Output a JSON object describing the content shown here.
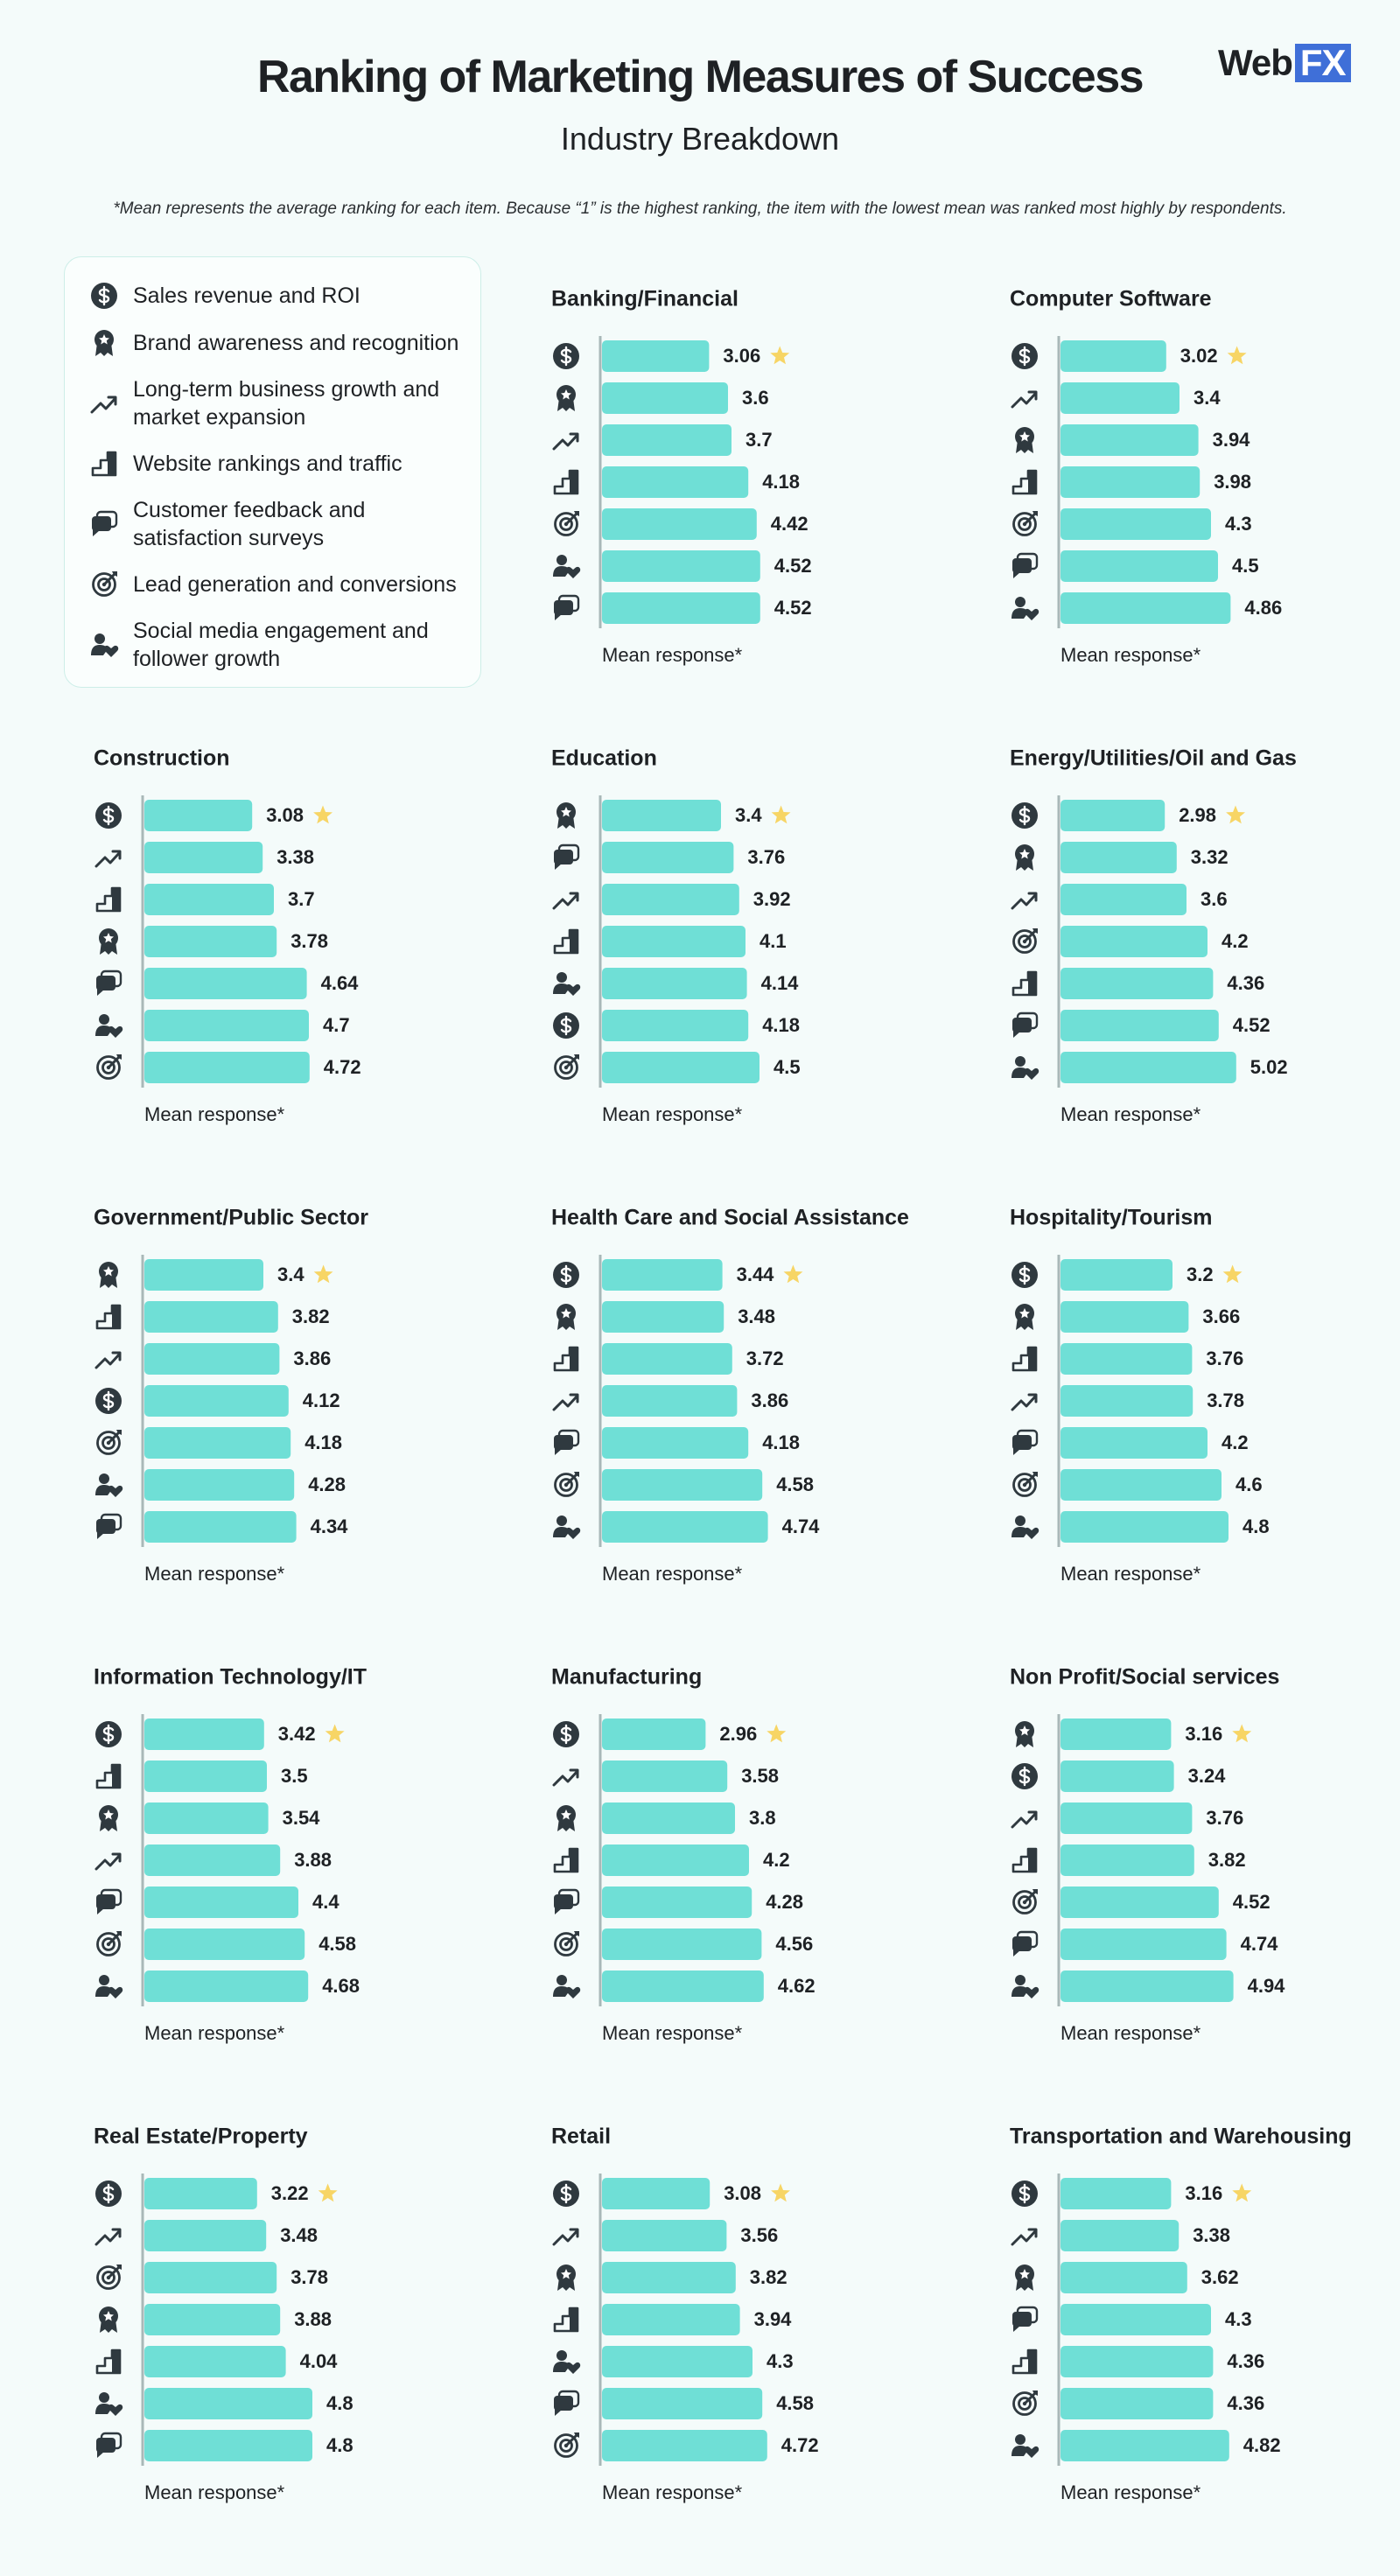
{
  "header": {
    "title": "Ranking of Marketing Measures of Success",
    "subtitle": "Industry Breakdown",
    "brand": {
      "text": "Web",
      "highlight": "FX"
    }
  },
  "note": "*Mean represents the average ranking for each item. Because “1” is the highest ranking, the item with the lowest mean was ranked most highly by respondents.",
  "legend": {
    "items": [
      "Sales revenue and ROI",
      "Brand awareness and recognition",
      "Long-term business growth and market expansion",
      "Website rankings and traffic",
      "Customer feedback and satisfaction surveys",
      "Lead generation and conversions",
      "Social media engagement and follower growth"
    ]
  },
  "chart_data": [
    {
      "type": "bar",
      "title": "Banking/Financial",
      "xlabel": "Mean response*",
      "color": "#6fdfd6",
      "categories": [
        "Sales revenue and ROI",
        "Brand awareness and recognition",
        "Long-term business growth and market expansion",
        "Website rankings and traffic",
        "Lead generation and conversions",
        "Social media engagement and follower growth",
        "Customer feedback and satisfaction surveys"
      ],
      "values": [
        3.06,
        3.6,
        3.7,
        4.18,
        4.42,
        4.52,
        4.52
      ]
    },
    {
      "type": "bar",
      "title": "Computer Software",
      "xlabel": "Mean response*",
      "color": "#6fdfd6",
      "categories": [
        "Sales revenue and ROI",
        "Long-term business growth and market expansion",
        "Brand awareness and recognition",
        "Website rankings and traffic",
        "Lead generation and conversions",
        "Customer feedback and satisfaction surveys",
        "Social media engagement and follower growth"
      ],
      "values": [
        3.02,
        3.4,
        3.94,
        3.98,
        4.3,
        4.5,
        4.86
      ]
    },
    {
      "type": "bar",
      "title": "Construction",
      "xlabel": "Mean response*",
      "color": "#6fdfd6",
      "categories": [
        "Sales revenue and ROI",
        "Long-term business growth and market expansion",
        "Website rankings and traffic",
        "Brand awareness and recognition",
        "Customer feedback and satisfaction surveys",
        "Social media engagement and follower growth",
        "Lead generation and conversions"
      ],
      "values": [
        3.08,
        3.38,
        3.7,
        3.78,
        4.64,
        4.7,
        4.72
      ]
    },
    {
      "type": "bar",
      "title": "Education",
      "xlabel": "Mean response*",
      "color": "#6fdfd6",
      "categories": [
        "Brand awareness and recognition",
        "Customer feedback and satisfaction surveys",
        "Long-term business growth and market expansion",
        "Website rankings and traffic",
        "Social media engagement and follower growth",
        "Sales revenue and ROI",
        "Lead generation and conversions"
      ],
      "values": [
        3.4,
        3.76,
        3.92,
        4.1,
        4.14,
        4.18,
        4.5
      ]
    },
    {
      "type": "bar",
      "title": "Energy/Utilities/Oil and Gas",
      "xlabel": "Mean response*",
      "color": "#6fdfd6",
      "categories": [
        "Sales revenue and ROI",
        "Brand awareness and recognition",
        "Long-term business growth and market expansion",
        "Lead generation and conversions",
        "Website rankings and traffic",
        "Customer feedback and satisfaction surveys",
        "Social media engagement and follower growth"
      ],
      "values": [
        2.98,
        3.32,
        3.6,
        4.2,
        4.36,
        4.52,
        5.02
      ]
    },
    {
      "type": "bar",
      "title": "Government/Public Sector",
      "xlabel": "Mean response*",
      "color": "#6fdfd6",
      "categories": [
        "Brand awareness and recognition",
        "Website rankings and traffic",
        "Long-term business growth and market expansion",
        "Sales revenue and ROI",
        "Lead generation and conversions",
        "Social media engagement and follower growth",
        "Customer feedback and satisfaction surveys"
      ],
      "values": [
        3.4,
        3.82,
        3.86,
        4.12,
        4.18,
        4.28,
        4.34
      ]
    },
    {
      "type": "bar",
      "title": "Health Care and Social Assistance",
      "xlabel": "Mean response*",
      "color": "#6fdfd6",
      "categories": [
        "Sales revenue and ROI",
        "Brand awareness and recognition",
        "Website rankings and traffic",
        "Long-term business growth and market expansion",
        "Customer feedback and satisfaction surveys",
        "Lead generation and conversions",
        "Social media engagement and follower growth"
      ],
      "values": [
        3.44,
        3.48,
        3.72,
        3.86,
        4.18,
        4.58,
        4.74
      ]
    },
    {
      "type": "bar",
      "title": "Hospitality/Tourism",
      "xlabel": "Mean response*",
      "color": "#6fdfd6",
      "categories": [
        "Sales revenue and ROI",
        "Brand awareness and recognition",
        "Website rankings and traffic",
        "Long-term business growth and market expansion",
        "Customer feedback and satisfaction surveys",
        "Lead generation and conversions",
        "Social media engagement and follower growth"
      ],
      "values": [
        3.2,
        3.66,
        3.76,
        3.78,
        4.2,
        4.6,
        4.8
      ]
    },
    {
      "type": "bar",
      "title": "Information Technology/IT",
      "xlabel": "Mean response*",
      "color": "#6fdfd6",
      "categories": [
        "Sales revenue and ROI",
        "Website rankings and traffic",
        "Brand awareness and recognition",
        "Long-term business growth and market expansion",
        "Customer feedback and satisfaction surveys",
        "Lead generation and conversions",
        "Social media engagement and follower growth"
      ],
      "values": [
        3.42,
        3.5,
        3.54,
        3.88,
        4.4,
        4.58,
        4.68
      ]
    },
    {
      "type": "bar",
      "title": "Manufacturing",
      "xlabel": "Mean response*",
      "color": "#6fdfd6",
      "categories": [
        "Sales revenue and ROI",
        "Long-term business growth and market expansion",
        "Brand awareness and recognition",
        "Website rankings and traffic",
        "Customer feedback and satisfaction surveys",
        "Lead generation and conversions",
        "Social media engagement and follower growth"
      ],
      "values": [
        2.96,
        3.58,
        3.8,
        4.2,
        4.28,
        4.56,
        4.62
      ]
    },
    {
      "type": "bar",
      "title": "Non Profit/Social services",
      "xlabel": "Mean response*",
      "color": "#6fdfd6",
      "categories": [
        "Brand awareness and recognition",
        "Sales revenue and ROI",
        "Long-term business growth and market expansion",
        "Website rankings and traffic",
        "Lead generation and conversions",
        "Customer feedback and satisfaction surveys",
        "Social media engagement and follower growth"
      ],
      "values": [
        3.16,
        3.24,
        3.76,
        3.82,
        4.52,
        4.74,
        4.94
      ]
    },
    {
      "type": "bar",
      "title": "Real Estate/Property",
      "xlabel": "Mean response*",
      "color": "#6fdfd6",
      "categories": [
        "Sales revenue and ROI",
        "Long-term business growth and market expansion",
        "Lead generation and conversions",
        "Brand awareness and recognition",
        "Website rankings and traffic",
        "Social media engagement and follower growth",
        "Customer feedback and satisfaction surveys"
      ],
      "values": [
        3.22,
        3.48,
        3.78,
        3.88,
        4.04,
        4.8,
        4.8
      ]
    },
    {
      "type": "bar",
      "title": "Retail",
      "xlabel": "Mean response*",
      "color": "#6fdfd6",
      "categories": [
        "Sales revenue and ROI",
        "Long-term business growth and market expansion",
        "Brand awareness and recognition",
        "Website rankings and traffic",
        "Social media engagement and follower growth",
        "Customer feedback and satisfaction surveys",
        "Lead generation and conversions"
      ],
      "values": [
        3.08,
        3.56,
        3.82,
        3.94,
        4.3,
        4.58,
        4.72
      ]
    },
    {
      "type": "bar",
      "title": "Transportation and Warehousing",
      "xlabel": "Mean response*",
      "color": "#6fdfd6",
      "categories": [
        "Sales revenue and ROI",
        "Long-term business growth and market expansion",
        "Brand awareness and recognition",
        "Customer feedback and satisfaction surveys",
        "Website rankings and traffic",
        "Lead generation and conversions",
        "Social media engagement and follower growth"
      ],
      "values": [
        3.16,
        3.38,
        3.62,
        4.3,
        4.36,
        4.36,
        4.82
      ]
    }
  ]
}
